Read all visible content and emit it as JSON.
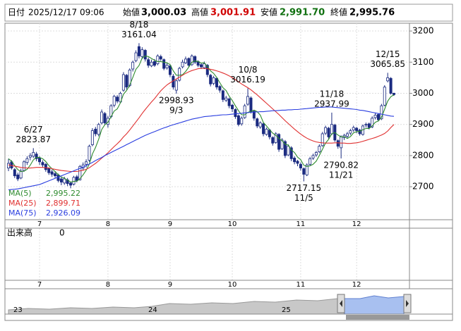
{
  "header": {
    "date_label": "日付",
    "date": "2025/12/17 09:06",
    "open_label": "始値",
    "open": "3,000.03",
    "high_label": "高値",
    "high": "3,001.91",
    "low_label": "安値",
    "low": "2,991.70",
    "close_label": "終値",
    "close": "2,995.76"
  },
  "chart_data": {
    "type": "candlestick",
    "up_color": "#ffffff",
    "down_color": "#1a2a80",
    "edge_color": "#1a2a80",
    "grid": true,
    "ylim": [
      2594,
      3225
    ],
    "yticks": [
      2700,
      2800,
      2900,
      3000,
      3100,
      3200
    ],
    "categories": [
      null,
      null,
      null,
      null,
      null,
      null,
      null,
      null,
      null,
      null,
      "7",
      null,
      null,
      null,
      null,
      null,
      null,
      null,
      null,
      null,
      null,
      null,
      null,
      null,
      null,
      null,
      null,
      null,
      null,
      null,
      null,
      null,
      "8",
      null,
      null,
      null,
      null,
      null,
      null,
      null,
      null,
      null,
      null,
      null,
      null,
      null,
      null,
      null,
      null,
      null,
      null,
      null,
      "9",
      null,
      null,
      null,
      null,
      null,
      null,
      null,
      null,
      null,
      null,
      null,
      null,
      null,
      null,
      null,
      null,
      null,
      null,
      null,
      "10",
      null,
      null,
      null,
      null,
      null,
      null,
      null,
      null,
      null,
      null,
      null,
      null,
      null,
      null,
      null,
      null,
      null,
      null,
      null,
      null,
      null,
      "11",
      null,
      null,
      null,
      null,
      null,
      null,
      null,
      null,
      null,
      null,
      null,
      null,
      null,
      null,
      null,
      null,
      null,
      "12",
      null,
      null,
      null,
      null,
      null,
      null,
      null,
      null,
      null,
      null,
      null,
      null
    ],
    "candles": [
      [
        2760,
        2790,
        2750,
        2775
      ],
      [
        2780,
        2785,
        2755,
        2760
      ],
      [
        2755,
        2760,
        2728,
        2735
      ],
      [
        2738,
        2745,
        2718,
        2725
      ],
      [
        2728,
        2758,
        2724,
        2750
      ],
      [
        2752,
        2785,
        2748,
        2780
      ],
      [
        2778,
        2798,
        2770,
        2790
      ],
      [
        2795,
        2808,
        2785,
        2800
      ],
      [
        2798,
        2823.87,
        2792,
        2810
      ],
      [
        2805,
        2812,
        2782,
        2790
      ],
      [
        2792,
        2798,
        2770,
        2780
      ],
      [
        2778,
        2785,
        2762,
        2770
      ],
      [
        2772,
        2776,
        2748,
        2755
      ],
      [
        2758,
        2762,
        2738,
        2745
      ],
      [
        2748,
        2755,
        2732,
        2740
      ],
      [
        2742,
        2750,
        2728,
        2735
      ],
      [
        2738,
        2742,
        2714,
        2720
      ],
      [
        2725,
        2730,
        2705,
        2715
      ],
      [
        2712,
        2732,
        2706,
        2725
      ],
      [
        2722,
        2728,
        2702,
        2710
      ],
      [
        2712,
        2716,
        2695,
        2705
      ],
      [
        2708,
        2735,
        2704,
        2730
      ],
      [
        2732,
        2738,
        2714,
        2720
      ],
      [
        2722,
        2770,
        2720,
        2765
      ],
      [
        2760,
        2778,
        2752,
        2770
      ],
      [
        2772,
        2788,
        2762,
        2780
      ],
      [
        2785,
        2835,
        2780,
        2830
      ],
      [
        2835,
        2888,
        2830,
        2880
      ],
      [
        2885,
        2892,
        2862,
        2870
      ],
      [
        2868,
        2905,
        2862,
        2900
      ],
      [
        2905,
        2948,
        2900,
        2940
      ],
      [
        2935,
        2940,
        2898,
        2905
      ],
      [
        2900,
        2928,
        2890,
        2920
      ],
      [
        2925,
        2965,
        2920,
        2960
      ],
      [
        2962,
        2995,
        2955,
        2990
      ],
      [
        2988,
        2994,
        2968,
        2975
      ],
      [
        2972,
        3005,
        2968,
        3000
      ],
      [
        3010,
        3068,
        3005,
        3060
      ],
      [
        3058,
        3062,
        3012,
        3020
      ],
      [
        3025,
        3080,
        3020,
        3075
      ],
      [
        3078,
        3105,
        3070,
        3100
      ],
      [
        3105,
        3138,
        3100,
        3130
      ],
      [
        3150,
        3161.04,
        3112,
        3120
      ],
      [
        3118,
        3148,
        3110,
        3140
      ],
      [
        3138,
        3142,
        3102,
        3110
      ],
      [
        3108,
        3115,
        3082,
        3090
      ],
      [
        3088,
        3108,
        3084,
        3100
      ],
      [
        3102,
        3110,
        3085,
        3090
      ],
      [
        3095,
        3125,
        3090,
        3120
      ],
      [
        3118,
        3124,
        3104,
        3110
      ],
      [
        3108,
        3112,
        3074,
        3080
      ],
      [
        3082,
        3098,
        3076,
        3090
      ],
      [
        3088,
        3092,
        3052,
        3060
      ],
      [
        3055,
        3062,
        3012,
        3020
      ],
      [
        3010,
        3045,
        2998.93,
        3040
      ],
      [
        3042,
        3085,
        3038,
        3080
      ],
      [
        3085,
        3108,
        3080,
        3100
      ],
      [
        3098,
        3118,
        3094,
        3110
      ],
      [
        3112,
        3115,
        3084,
        3090
      ],
      [
        3092,
        3125,
        3088,
        3120
      ],
      [
        3118,
        3122,
        3094,
        3100
      ],
      [
        3102,
        3106,
        3084,
        3090
      ],
      [
        3092,
        3098,
        3078,
        3085
      ],
      [
        3082,
        3102,
        3078,
        3095
      ],
      [
        3090,
        3094,
        3052,
        3060
      ],
      [
        3058,
        3062,
        3022,
        3030
      ],
      [
        3032,
        3056,
        3026,
        3050
      ],
      [
        3048,
        3052,
        3012,
        3020
      ],
      [
        3022,
        3026,
        3002,
        3010
      ],
      [
        3008,
        3012,
        2972,
        2980
      ],
      [
        2978,
        2992,
        2972,
        2985
      ],
      [
        2982,
        2986,
        2952,
        2960
      ],
      [
        2962,
        2966,
        2940,
        2950
      ],
      [
        2948,
        2952,
        2918,
        2925
      ],
      [
        2928,
        2932,
        2894,
        2900
      ],
      [
        2902,
        2926,
        2896,
        2920
      ],
      [
        2922,
        2966,
        2918,
        2960
      ],
      [
        2965,
        3016.19,
        2960,
        2990
      ],
      [
        2985,
        2990,
        2935,
        2940
      ],
      [
        2942,
        2946,
        2912,
        2920
      ],
      [
        2918,
        2922,
        2888,
        2895
      ],
      [
        2892,
        2910,
        2886,
        2905
      ],
      [
        2902,
        2906,
        2862,
        2870
      ],
      [
        2868,
        2890,
        2864,
        2885
      ],
      [
        2882,
        2886,
        2852,
        2860
      ],
      [
        2858,
        2862,
        2832,
        2840
      ],
      [
        2842,
        2875,
        2838,
        2870
      ],
      [
        2868,
        2872,
        2812,
        2820
      ],
      [
        2822,
        2856,
        2818,
        2850
      ],
      [
        2845,
        2850,
        2792,
        2800
      ],
      [
        2802,
        2836,
        2798,
        2830
      ],
      [
        2825,
        2830,
        2782,
        2790
      ],
      [
        2792,
        2798,
        2772,
        2780
      ],
      [
        2782,
        2786,
        2766,
        2775
      ],
      [
        2772,
        2778,
        2752,
        2760
      ],
      [
        2758,
        2762,
        2717.15,
        2740
      ],
      [
        2738,
        2775,
        2734,
        2770
      ],
      [
        2772,
        2796,
        2768,
        2790
      ],
      [
        2792,
        2806,
        2786,
        2800
      ],
      [
        2802,
        2815,
        2796,
        2810
      ],
      [
        2812,
        2836,
        2808,
        2830
      ],
      [
        2832,
        2876,
        2828,
        2870
      ],
      [
        2872,
        2896,
        2866,
        2890
      ],
      [
        2888,
        2892,
        2854,
        2860
      ],
      [
        2870,
        2937.99,
        2866,
        2900
      ],
      [
        2898,
        2902,
        2844,
        2850
      ],
      [
        2848,
        2852,
        2822,
        2830
      ],
      [
        2825,
        2865,
        2790.82,
        2860
      ],
      [
        2858,
        2870,
        2850,
        2865
      ],
      [
        2862,
        2876,
        2856,
        2870
      ],
      [
        2872,
        2886,
        2866,
        2880
      ],
      [
        2882,
        2896,
        2876,
        2890
      ],
      [
        2888,
        2892,
        2872,
        2880
      ],
      [
        2882,
        2886,
        2864,
        2870
      ],
      [
        2868,
        2900,
        2864,
        2895
      ],
      [
        2898,
        2906,
        2890,
        2900
      ],
      [
        2902,
        2906,
        2884,
        2890
      ],
      [
        2892,
        2926,
        2888,
        2920
      ],
      [
        2922,
        2936,
        2916,
        2930
      ],
      [
        2932,
        2936,
        2910,
        2915
      ],
      [
        2918,
        2966,
        2914,
        2960
      ],
      [
        2962,
        3026,
        2958,
        3020
      ],
      [
        3040,
        3065.85,
        3035,
        3050
      ],
      [
        3048,
        3052,
        2996,
        3000
      ],
      [
        3000.03,
        3001.91,
        2991.7,
        2995.76
      ]
    ],
    "series": [
      {
        "name": "MA(5)",
        "color": "#2e8b2e",
        "legend_value": "2,995.22",
        "values": [
          2790,
          2782,
          2768,
          2755,
          2749,
          2750,
          2756,
          2769,
          2786,
          2794,
          2794,
          2790,
          2781,
          2768,
          2758,
          2749,
          2739,
          2731,
          2727,
          2721,
          2715,
          2717,
          2718,
          2726,
          2738,
          2753,
          2773,
          2805,
          2826,
          2852,
          2884,
          2899,
          2907,
          2925,
          2943,
          2950,
          2969,
          2997,
          3009,
          3026,
          3051,
          3077,
          3089,
          3113,
          3120,
          3118,
          3112,
          3106,
          3102,
          3102,
          3100,
          3098,
          3092,
          3072,
          3058,
          3058,
          3060,
          3070,
          3084,
          3100,
          3104,
          3102,
          3097,
          3098,
          3086,
          3072,
          3064,
          3051,
          3034,
          3018,
          3009,
          2991,
          2977,
          2960,
          2944,
          2931,
          2931,
          2939,
          2942,
          2946,
          2941,
          2930,
          2906,
          2895,
          2883,
          2872,
          2865,
          2855,
          2848,
          2836,
          2834,
          2818,
          2810,
          2795,
          2787,
          2769,
          2765,
          2767,
          2772,
          2782,
          2800,
          2820,
          2840,
          2852,
          2870,
          2874,
          2866,
          2860,
          2861,
          2855,
          2861,
          2873,
          2877,
          2878,
          2883,
          2887,
          2887,
          2895,
          2907,
          2911,
          2923,
          2949,
          2975,
          2989,
          2995.22
        ]
      },
      {
        "name": "MA(25)",
        "color": "#e03030",
        "legend_value": "2,899.71",
        "values": [
          2770,
          2768,
          2766,
          2764,
          2762,
          2761,
          2760,
          2760,
          2761,
          2762,
          2762,
          2762,
          2761,
          2760,
          2758,
          2756,
          2754,
          2752,
          2751,
          2750,
          2749,
          2749,
          2749,
          2751,
          2753,
          2756,
          2761,
          2768,
          2775,
          2783,
          2792,
          2800,
          2809,
          2819,
          2829,
          2838,
          2848,
          2860,
          2870,
          2882,
          2895,
          2908,
          2921,
          2935,
          2948,
          2960,
          2972,
          2983,
          2996,
          3008,
          3018,
          3027,
          3034,
          3040,
          3046,
          3052,
          3058,
          3064,
          3069,
          3073,
          3076,
          3079,
          3080,
          3080,
          3079,
          3077,
          3075,
          3072,
          3069,
          3065,
          3061,
          3056,
          3050,
          3044,
          3037,
          3030,
          3024,
          3018,
          3011,
          3003,
          2995,
          2986,
          2977,
          2968,
          2959,
          2950,
          2941,
          2932,
          2922,
          2912,
          2903,
          2894,
          2885,
          2877,
          2869,
          2862,
          2856,
          2851,
          2847,
          2844,
          2842,
          2841,
          2840,
          2840,
          2840,
          2841,
          2841,
          2840,
          2840,
          2839,
          2839,
          2840,
          2841,
          2843,
          2846,
          2849,
          2852,
          2855,
          2858,
          2862,
          2866,
          2871,
          2879,
          2890,
          2899.71
        ]
      },
      {
        "name": "MA(75)",
        "color": "#2a3ee0",
        "legend_value": "2,926.09",
        "values": [
          2690,
          2691,
          2692,
          2693,
          2695,
          2697,
          2699,
          2701,
          2703,
          2705,
          2707,
          2711,
          2715,
          2719,
          2723,
          2727,
          2731,
          2735,
          2739,
          2743,
          2747,
          2751,
          2755,
          2759,
          2763,
          2768,
          2773,
          2778,
          2784,
          2789,
          2794,
          2800,
          2805,
          2810,
          2815,
          2820,
          2825,
          2830,
          2835,
          2840,
          2845,
          2850,
          2855,
          2860,
          2865,
          2869,
          2873,
          2877,
          2881,
          2885,
          2889,
          2892,
          2896,
          2899,
          2902,
          2905,
          2908,
          2911,
          2914,
          2917,
          2919,
          2921,
          2923,
          2925,
          2926,
          2927,
          2928,
          2929,
          2930,
          2931,
          2931,
          2932,
          2933,
          2934,
          2935,
          2936,
          2937,
          2938,
          2939,
          2940,
          2940,
          2941,
          2941,
          2942,
          2943,
          2944,
          2944,
          2945,
          2946,
          2946,
          2947,
          2947,
          2948,
          2948,
          2949,
          2950,
          2951,
          2952,
          2953,
          2954,
          2955,
          2955,
          2956,
          2956,
          2956,
          2955,
          2954,
          2953,
          2952,
          2951,
          2950,
          2949,
          2948,
          2946,
          2945,
          2943,
          2941,
          2939,
          2937,
          2935,
          2933,
          2931,
          2929,
          2927,
          2926.09
        ]
      }
    ],
    "annotations": [
      {
        "date": "6/27",
        "value": 2823.87
      },
      {
        "date": "8/18",
        "value": 3161.04
      },
      {
        "date": "9/3",
        "value": 2998.93
      },
      {
        "date": "10/8",
        "value": 3016.19
      },
      {
        "date": "11/5",
        "value": 2717.15
      },
      {
        "date": "11/18",
        "value": 2937.99
      },
      {
        "date": "11/21",
        "value": 2790.82
      },
      {
        "date": "12/15",
        "value": 3065.85
      }
    ],
    "volume": {
      "label": "出来高",
      "yticks": [
        0
      ]
    },
    "navigator": {
      "labels": [
        "23",
        "24",
        "25"
      ]
    }
  }
}
